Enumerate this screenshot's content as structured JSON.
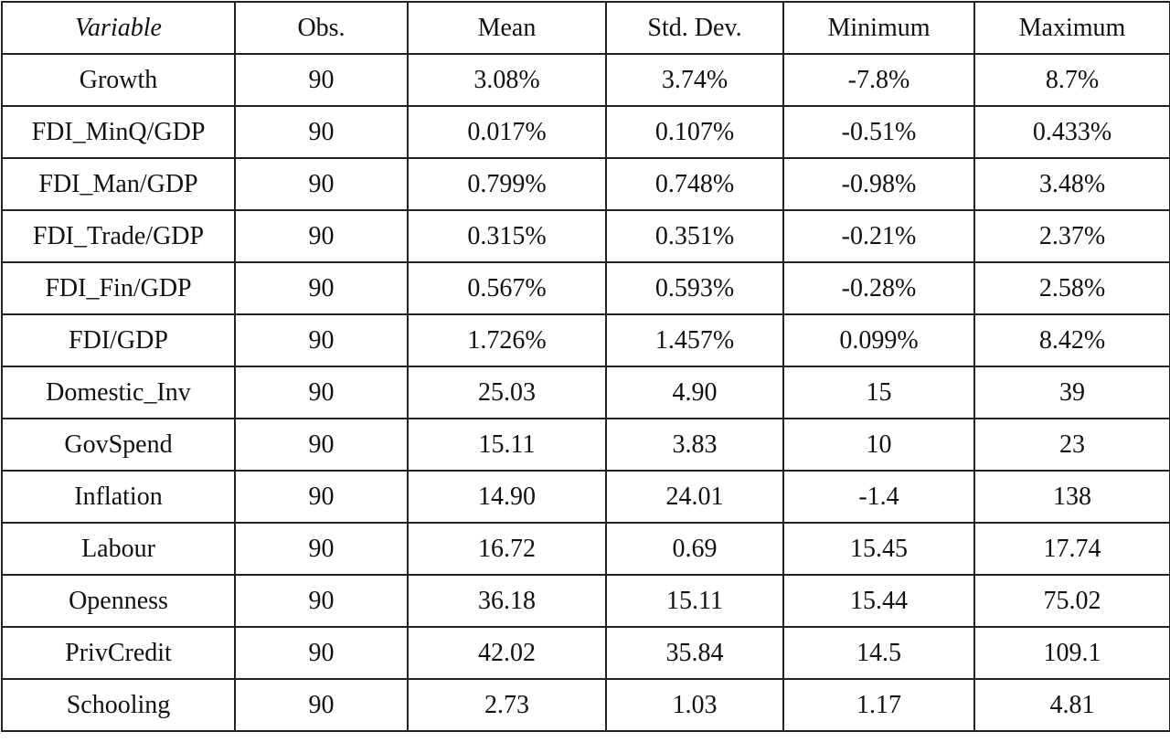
{
  "table": {
    "header": [
      "Variable",
      "Obs.",
      "Mean",
      "Std. Dev.",
      "Minimum",
      "Maximum"
    ],
    "rows": [
      [
        "Growth",
        "90",
        "3.08%",
        "3.74%",
        "-7.8%",
        "8.7%"
      ],
      [
        "FDI_MinQ/GDP",
        "90",
        "0.017%",
        "0.107%",
        "-0.51%",
        "0.433%"
      ],
      [
        "FDI_Man/GDP",
        "90",
        "0.799%",
        "0.748%",
        "-0.98%",
        "3.48%"
      ],
      [
        "FDI_Trade/GDP",
        "90",
        "0.315%",
        "0.351%",
        "-0.21%",
        "2.37%"
      ],
      [
        "FDI_Fin/GDP",
        "90",
        "0.567%",
        "0.593%",
        "-0.28%",
        "2.58%"
      ],
      [
        "FDI/GDP",
        "90",
        "1.726%",
        "1.457%",
        "0.099%",
        "8.42%"
      ],
      [
        "Domestic_Inv",
        "90",
        "25.03",
        "4.90",
        "15",
        "39"
      ],
      [
        "GovSpend",
        "90",
        "15.11",
        "3.83",
        "10",
        "23"
      ],
      [
        "Inflation",
        "90",
        "14.90",
        "24.01",
        "-1.4",
        "138"
      ],
      [
        "Labour",
        "90",
        "16.72",
        "0.69",
        "15.45",
        "17.74"
      ],
      [
        "Openness",
        "90",
        "36.18",
        "15.11",
        "15.44",
        "75.02"
      ],
      [
        "PrivCredit",
        "90",
        "42.02",
        "35.84",
        "14.5",
        "109.1"
      ],
      [
        "Schooling",
        "90",
        "2.73",
        "1.03",
        "1.17",
        "4.81"
      ]
    ]
  }
}
